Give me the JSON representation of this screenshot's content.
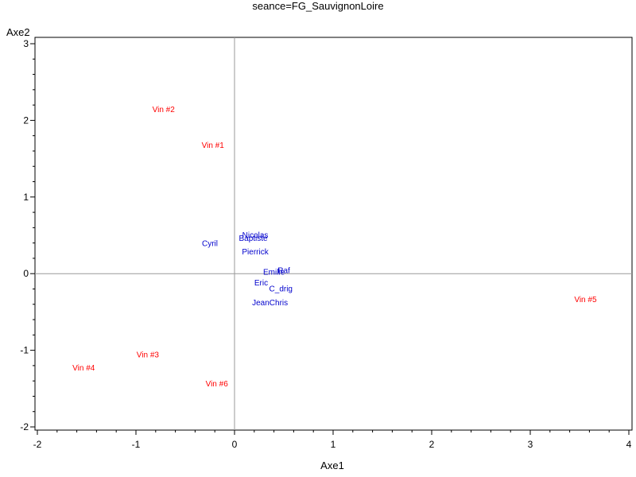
{
  "chart_data": {
    "type": "scatter",
    "title": "seance=FG_SauvignonLoire",
    "xlabel": "Axe1",
    "ylabel": "Axe2",
    "xlim": [
      -2,
      4
    ],
    "ylim": [
      -2,
      3
    ],
    "x_ticks": [
      -2,
      -1,
      0,
      1,
      2,
      3,
      4
    ],
    "y_ticks": [
      -2,
      -1,
      0,
      1,
      2,
      3
    ],
    "reference_lines": {
      "x": 0,
      "y": 0
    },
    "grid": false,
    "series": [
      {
        "color": "#ff0000",
        "points": [
          {
            "label": "Vin #1",
            "x": -0.22,
            "y": 1.68
          },
          {
            "label": "Vin #2",
            "x": -0.72,
            "y": 2.15
          },
          {
            "label": "Vin #3",
            "x": -0.88,
            "y": -1.05
          },
          {
            "label": "Vin #4",
            "x": -1.53,
            "y": -1.22
          },
          {
            "label": "Vin #5",
            "x": 3.56,
            "y": -0.33
          },
          {
            "label": "Vin #6",
            "x": -0.18,
            "y": -1.43
          }
        ]
      },
      {
        "color": "#0000cc",
        "points": [
          {
            "label": "Nicolas",
            "x": 0.21,
            "y": 0.51
          },
          {
            "label": "Baptiste",
            "x": 0.19,
            "y": 0.47
          },
          {
            "label": "Cyril",
            "x": -0.25,
            "y": 0.4
          },
          {
            "label": "Pierrick",
            "x": 0.21,
            "y": 0.29
          },
          {
            "label": "Raf",
            "x": 0.5,
            "y": 0.05
          },
          {
            "label": "Emilie",
            "x": 0.4,
            "y": 0.03
          },
          {
            "label": "Eric",
            "x": 0.27,
            "y": -0.11
          },
          {
            "label": "C_drig",
            "x": 0.47,
            "y": -0.19
          },
          {
            "label": "JeanChris",
            "x": 0.36,
            "y": -0.37
          }
        ]
      }
    ]
  }
}
